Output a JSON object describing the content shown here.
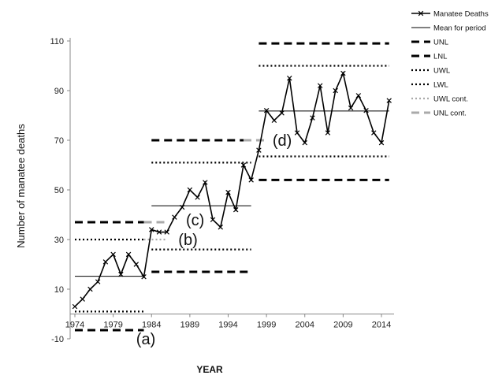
{
  "chart_data": {
    "type": "line",
    "xlabel": "YEAR",
    "ylabel": "Number of manatee deaths",
    "xlim": [
      1974,
      2015
    ],
    "ylim": [
      -10,
      110
    ],
    "x_ticks": [
      "1974",
      "1979",
      "1984",
      "1989",
      "1994",
      "1999",
      "2004",
      "2009",
      "2014"
    ],
    "y_ticks": [
      "-10",
      "10",
      "30",
      "50",
      "70",
      "90",
      "110"
    ],
    "grid": false,
    "legend_position": "right",
    "colors": {
      "line": "#000000",
      "cont": "#aaaaaa"
    },
    "legend": [
      {
        "label": "Manatee Deaths",
        "style": "line-x"
      },
      {
        "label": "Mean for period",
        "style": "thin"
      },
      {
        "label": "UNL",
        "style": "dash"
      },
      {
        "label": "LNL",
        "style": "dash"
      },
      {
        "label": "UWL",
        "style": "dot"
      },
      {
        "label": "LWL",
        "style": "dot"
      },
      {
        "label": "UWL cont.",
        "style": "dot-gray"
      },
      {
        "label": "UNL cont.",
        "style": "dash-gray"
      }
    ],
    "series": [
      {
        "name": "Manatee Deaths",
        "x": [
          1974,
          1975,
          1976,
          1977,
          1978,
          1979,
          1980,
          1981,
          1982,
          1983,
          1984,
          1985,
          1986,
          1987,
          1988,
          1989,
          1990,
          1991,
          1992,
          1993,
          1994,
          1995,
          1996,
          1997,
          1998,
          1999,
          2000,
          2001,
          2002,
          2003,
          2004,
          2005,
          2006,
          2007,
          2008,
          2009,
          2010,
          2011,
          2012,
          2013,
          2014,
          2015
        ],
        "y": [
          3,
          6,
          10,
          13,
          21,
          24,
          16,
          24,
          20,
          15,
          34,
          33,
          33,
          39,
          43,
          50,
          47,
          53,
          38,
          35,
          49,
          42,
          60,
          54,
          66,
          82,
          78,
          81,
          95,
          73,
          69,
          79,
          92,
          73,
          90,
          97,
          83,
          88,
          82,
          73,
          69,
          86
        ]
      }
    ],
    "periods": [
      {
        "x": [
          1974,
          1983
        ],
        "mean": 15.2,
        "unl": 37,
        "lnl": -6.5,
        "uwl": 30,
        "lwl": 1
      },
      {
        "x": [
          1984,
          1997
        ],
        "mean": 43.6,
        "unl": 17,
        "uwl": 26,
        "lwl": 61
      },
      {
        "x": [
          1998,
          2015
        ],
        "mean": 81.8,
        "unl": 109,
        "lnl": 54,
        "uwl": 100,
        "lwl": 63.5
      }
    ],
    "continuations": [
      {
        "kind": "UWL cont.",
        "x": [
          1983,
          1986
        ],
        "y": 30
      },
      {
        "kind": "UNL cont.",
        "x": [
          1983,
          1986
        ],
        "y": 37
      },
      {
        "kind": "UNL cont.",
        "x": [
          1996,
          1999
        ],
        "y": 70
      }
    ],
    "upper_period2": {
      "x": [
        1984,
        1997
      ],
      "y": 70
    },
    "annotations": [
      {
        "text": "(a)",
        "x": 1982,
        "y": -10
      },
      {
        "text": "(b)",
        "x": 1987.5,
        "y": 30
      },
      {
        "text": "(c)",
        "x": 1988.5,
        "y": 38
      },
      {
        "text": "(d)",
        "x": 1999.8,
        "y": 70
      }
    ]
  }
}
